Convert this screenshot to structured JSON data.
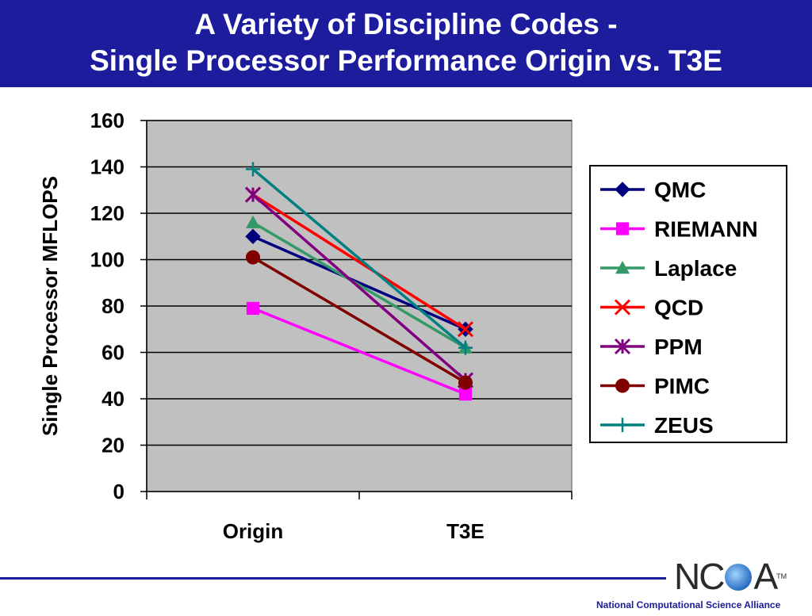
{
  "header": {
    "title_line1": "A Variety of Discipline Codes -",
    "title_line2": "Single Processor Performance Origin vs. T3E",
    "background": "#1c1c9c"
  },
  "chart_data": {
    "type": "line",
    "categories": [
      "Origin",
      "T3E"
    ],
    "ylabel": "Single Processor MFLOPS",
    "xlabel": "",
    "ylim": [
      0,
      160
    ],
    "yticks": [
      0,
      20,
      40,
      60,
      80,
      100,
      120,
      140,
      160
    ],
    "grid": true,
    "legend": "right",
    "plot_background": "#c0c0c0",
    "series": [
      {
        "name": "QMC",
        "values": [
          110,
          70
        ],
        "color": "#00007f",
        "marker": "diamond"
      },
      {
        "name": "RIEMANN",
        "values": [
          79,
          42
        ],
        "color": "#ff00ff",
        "marker": "square"
      },
      {
        "name": "Laplace",
        "values": [
          116,
          62
        ],
        "color": "#339966",
        "marker": "triangle"
      },
      {
        "name": "QCD",
        "values": [
          128,
          70
        ],
        "color": "#ff0000",
        "marker": "x"
      },
      {
        "name": "PPM",
        "values": [
          128,
          48
        ],
        "color": "#800080",
        "marker": "star"
      },
      {
        "name": "PIMC",
        "values": [
          101,
          47
        ],
        "color": "#800000",
        "marker": "circle"
      },
      {
        "name": "ZEUS",
        "values": [
          139,
          62
        ],
        "color": "#008080",
        "marker": "plus"
      }
    ]
  },
  "footer": {
    "logo_text_left": "NC",
    "logo_text_right": "A",
    "trademark": "TM",
    "organization": "National Computational Science Alliance"
  }
}
